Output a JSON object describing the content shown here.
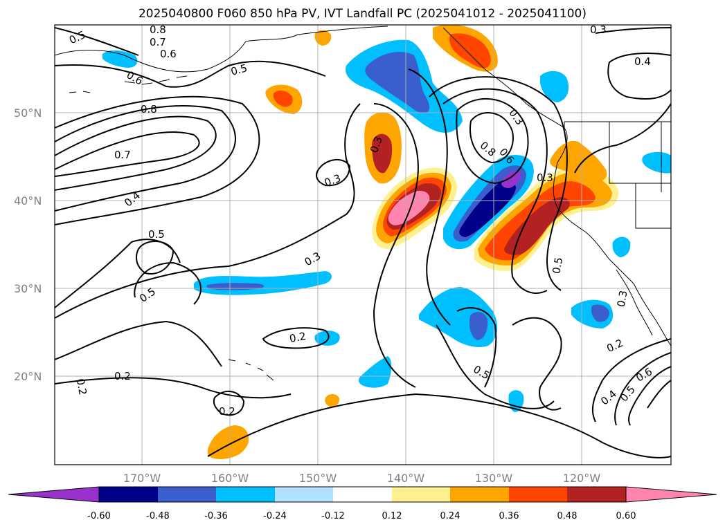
{
  "title": "2025040800 F060 850 hPa PV, IVT Landfall PC (2025041012 - 2025041100)",
  "colors": {
    "frame": "#000000",
    "grid": "#b0b0b0",
    "coast": "#000000",
    "contour": "#000000"
  },
  "lat_labels": [
    "50°N",
    "40°N",
    "30°N",
    "20°N"
  ],
  "lon_labels": [
    "170°W",
    "160°W",
    "150°W",
    "140°W",
    "130°W",
    "120°W"
  ],
  "contour_labels": [
    "0.5",
    "0.8",
    "0.7",
    "0.6",
    "0.5",
    "0.6",
    "0.8",
    "0.7",
    "0.4",
    "0.5",
    "0.5",
    "0.3",
    "0.3",
    "0.3",
    "0.3",
    "0.3",
    "0.8",
    "0.6",
    "0.3",
    "0.4",
    "0.5",
    "0.2",
    "0.2",
    "0.2",
    "0.2",
    "0.5",
    "0.3",
    "0.2",
    "0.4",
    "0.5",
    "0.6"
  ],
  "colorbar": {
    "levels": [
      "-0.60",
      "-0.48",
      "-0.36",
      "-0.24",
      "-0.12",
      "0.12",
      "0.24",
      "0.36",
      "0.48",
      "0.60"
    ],
    "colors": [
      "#9932cc",
      "#00008b",
      "#3a5fcd",
      "#00bfff",
      "#b0e2ff",
      "#ffffff",
      "#fff08f",
      "#ffa500",
      "#ff4500",
      "#b22222",
      "#ff85b0",
      "#ff85b0"
    ]
  }
}
